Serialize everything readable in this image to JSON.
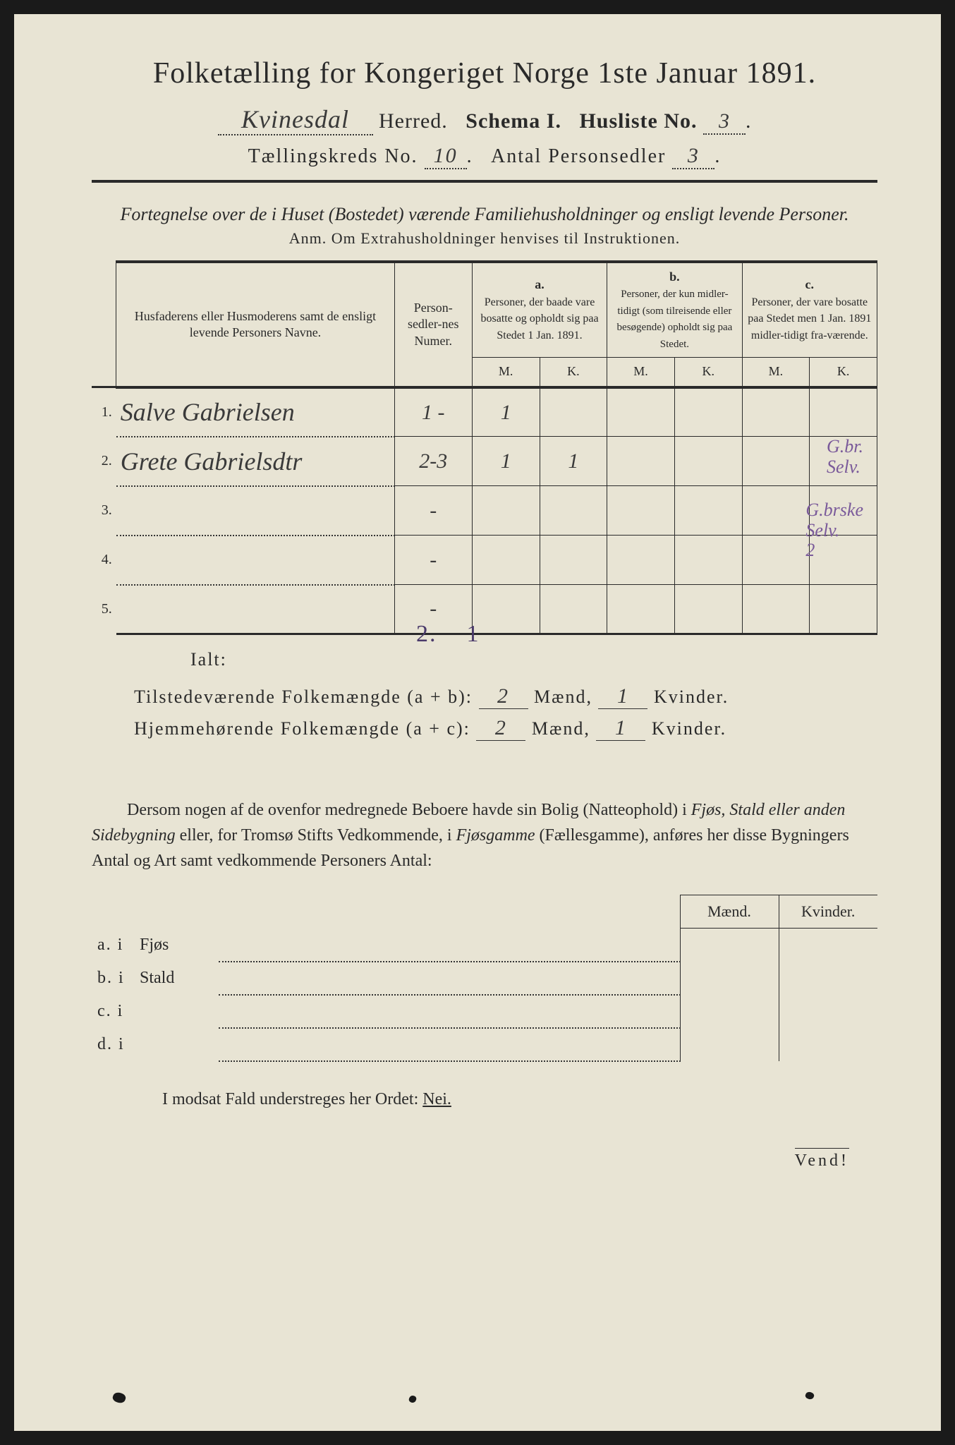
{
  "title": "Folketælling for Kongeriget Norge 1ste Januar 1891.",
  "header": {
    "herred_value": "Kvinesdal",
    "herred_label": "Herred.",
    "schema_label": "Schema I.",
    "husliste_label": "Husliste No.",
    "husliste_value": "3",
    "kreds_label": "Tællingskreds No.",
    "kreds_value": "10",
    "antal_label": "Antal Personsedler",
    "antal_value": "3"
  },
  "subtitle": "Fortegnelse over de i Huset (Bostedet) værende Familiehusholdninger og ensligt levende Personer.",
  "anm": "Anm. Om Extrahusholdninger henvises til Instruktionen.",
  "table": {
    "col_name": "Husfaderens eller Husmoderens samt de ensligt levende Personers Navne.",
    "col_num": "Person-sedler-nes Numer.",
    "col_a_label": "a.",
    "col_a": "Personer, der baade vare bosatte og opholdt sig paa Stedet 1 Jan. 1891.",
    "col_b_label": "b.",
    "col_b": "Personer, der kun midler-tidigt (som tilreisende eller besøgende) opholdt sig paa Stedet.",
    "col_c_label": "c.",
    "col_c": "Personer, der vare bosatte paa Stedet men 1 Jan. 1891 midler-tidigt fra-værende.",
    "mk_m": "M.",
    "mk_k": "K.",
    "rows": [
      {
        "n": "1.",
        "name": "Salve Gabrielsen",
        "num": "1 -",
        "aM": "1",
        "aK": "",
        "bM": "",
        "bK": "",
        "cM": "",
        "cK": "",
        "note": "G.br.\nSelv."
      },
      {
        "n": "2.",
        "name": "Grete Gabrielsdtr",
        "num": "2-3",
        "aM": "1",
        "aK": "1",
        "bM": "",
        "bK": "",
        "cM": "",
        "cK": "",
        "note": "G.brske\nSelv.\n2"
      },
      {
        "n": "3.",
        "name": "",
        "num": "-",
        "aM": "",
        "aK": "",
        "bM": "",
        "bK": "",
        "cM": "",
        "cK": "",
        "note": ""
      },
      {
        "n": "4.",
        "name": "",
        "num": "-",
        "aM": "",
        "aK": "",
        "bM": "",
        "bK": "",
        "cM": "",
        "cK": "",
        "note": ""
      },
      {
        "n": "5.",
        "name": "",
        "num": "-",
        "aM": "",
        "aK": "",
        "bM": "",
        "bK": "",
        "cM": "",
        "cK": "",
        "note": ""
      }
    ],
    "ialt_label": "Ialt:",
    "ialt_m": "2.",
    "ialt_k": "1"
  },
  "summary": {
    "line1_label": "Tilstedeværende Folkemængde (a + b):",
    "line1_m": "2",
    "line1_k": "1",
    "line2_label": "Hjemmehørende Folkemængde (a + c):",
    "line2_m": "2",
    "line2_k": "1",
    "maend": "Mænd,",
    "kvinder": "Kvinder."
  },
  "paragraph": {
    "text1": "Dersom nogen af de ovenfor medregnede Beboere havde sin Bolig (Natteophold) i ",
    "italic1": "Fjøs, Stald eller anden Sidebygning",
    "text2": " eller, for Tromsø Stifts Vedkommende, i ",
    "italic2": "Fjøsgamme",
    "text3": " (Fællesgamme), anføres her disse Bygningers Antal og Art samt vedkommende Personers Antal:"
  },
  "subtable": {
    "maend": "Mænd.",
    "kvinder": "Kvinder.",
    "rows": [
      {
        "lbl": "a.  i",
        "type": "Fjøs"
      },
      {
        "lbl": "b.  i",
        "type": "Stald"
      },
      {
        "lbl": "c.  i",
        "type": ""
      },
      {
        "lbl": "d.  i",
        "type": ""
      }
    ]
  },
  "nei": {
    "text": "I modsat Fald understreges her Ordet: ",
    "word": "Nei."
  },
  "vend": "Vend!",
  "colors": {
    "paper": "#e8e4d4",
    "ink": "#2a2a2a",
    "handwriting": "#3a3a3a",
    "purple_note": "#7a5a9a"
  }
}
